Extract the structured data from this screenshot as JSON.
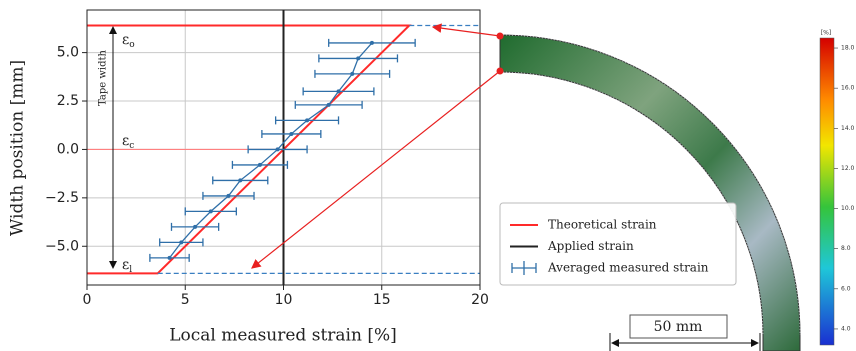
{
  "chart_data": {
    "type": "line",
    "x_label": "Local measured strain [%]",
    "y_label": "Width position [mm]",
    "xlim": [
      0,
      20
    ],
    "ylim": [
      -7.0,
      7.2
    ],
    "xticks": [
      0,
      5,
      10,
      15,
      20
    ],
    "yticks": [
      {
        "value": -5,
        "label": "−5.0"
      },
      {
        "value": -2.5,
        "label": "−2.5"
      },
      {
        "value": 0,
        "label": "0.0"
      },
      {
        "value": 2.5,
        "label": "2.5"
      },
      {
        "value": 5,
        "label": "5.0"
      }
    ],
    "grid": true,
    "series": [
      {
        "name": "Theoretical strain",
        "color": "#ff2a2a",
        "x": [
          0,
          16.4,
          3.6,
          0
        ],
        "y": [
          6.4,
          6.4,
          -6.4,
          -6.4
        ]
      },
      {
        "color": "#ff8080",
        "x": [
          0,
          10
        ],
        "y": [
          0,
          0
        ]
      },
      {
        "name": "Applied strain",
        "color": "#222222",
        "x": [
          10,
          10
        ],
        "y": [
          -7.0,
          7.2
        ]
      },
      {
        "color": "#3a7fc1",
        "dash": true,
        "x": [
          16.4,
          20
        ],
        "y": [
          6.4,
          6.4
        ]
      },
      {
        "color": "#3a7fc1",
        "dash": true,
        "x": [
          3.6,
          20
        ],
        "y": [
          -6.4,
          -6.4
        ]
      },
      {
        "name": "Averaged measured strain",
        "color": "#2f6fa8",
        "marker": true,
        "x": [
          14.5,
          13.8,
          13.5,
          12.8,
          12.3,
          11.2,
          10.4,
          9.7,
          8.8,
          7.8,
          7.2,
          6.3,
          5.5,
          4.8,
          4.2
        ],
        "y": [
          5.5,
          4.7,
          3.9,
          3.0,
          2.3,
          1.5,
          0.8,
          0.0,
          -0.8,
          -1.6,
          -2.4,
          -3.2,
          -4.0,
          -4.8,
          -5.6
        ],
        "xerr": [
          2.2,
          2.0,
          1.9,
          1.8,
          1.7,
          1.6,
          1.5,
          1.5,
          1.4,
          1.4,
          1.3,
          1.3,
          1.2,
          1.1,
          1.0
        ]
      }
    ],
    "annotations": {
      "tape_width": "Tape width",
      "eps_o": {
        "symbol": "ε",
        "subscript": "o"
      },
      "eps_c": {
        "symbol": "ε",
        "subscript": "c"
      },
      "eps_l": {
        "symbol": "ε",
        "subscript": "l"
      }
    },
    "inset": {
      "scale_bar": "50 mm",
      "colorbar": {
        "label": "[%]",
        "clim": [
          3.2,
          18.5
        ],
        "ticks": [
          {
            "value": 18,
            "label": "18.0"
          },
          {
            "value": 16,
            "label": "16.0"
          },
          {
            "value": 14,
            "label": "14.0"
          },
          {
            "value": 12,
            "label": "12.0"
          },
          {
            "value": 10,
            "label": "10.0"
          },
          {
            "value": 8,
            "label": "8.0"
          },
          {
            "value": 6,
            "label": "6.0"
          },
          {
            "value": 4,
            "label": "4.0"
          }
        ]
      }
    }
  }
}
